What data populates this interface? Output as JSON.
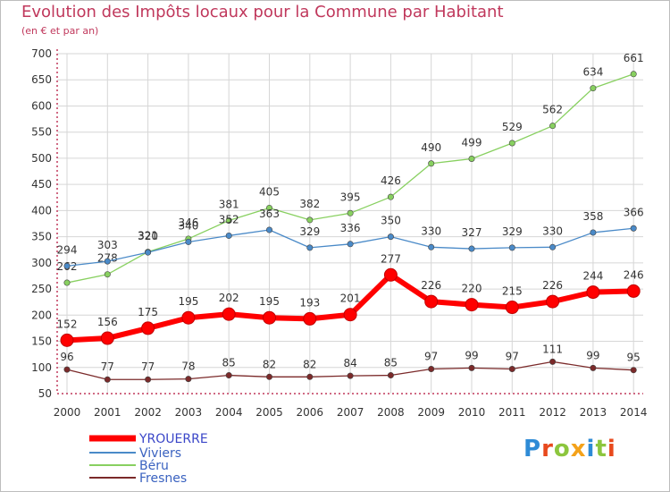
{
  "title": "Evolution des Impôts locaux pour la Commune par Habitant",
  "subtitle": "(en € et par an)",
  "logo_text": "Proxiti",
  "colors": {
    "title": "#c0385c",
    "axis": "#c0385c",
    "grid": "#d6d6d6"
  },
  "chart_data": {
    "type": "line",
    "x": [
      "2000",
      "2001",
      "2002",
      "2003",
      "2004",
      "2005",
      "2006",
      "2007",
      "2008",
      "2009",
      "2010",
      "2011",
      "2012",
      "2013",
      "2014"
    ],
    "yticks": [
      50,
      100,
      150,
      200,
      250,
      300,
      350,
      400,
      450,
      500,
      550,
      600,
      650,
      700
    ],
    "ylim": [
      50,
      700
    ],
    "grid": true,
    "legend_position": "bottom-left",
    "series": [
      {
        "name": "YROUERRE",
        "color": "#ff0000",
        "values": [
          152,
          156,
          175,
          195,
          202,
          195,
          193,
          201,
          277,
          226,
          220,
          215,
          226,
          244,
          246
        ]
      },
      {
        "name": "Viviers",
        "color": "#4a8ac8",
        "values": [
          294,
          303,
          320,
          340,
          352,
          363,
          329,
          336,
          350,
          330,
          327,
          329,
          330,
          358,
          366
        ]
      },
      {
        "name": "Béru",
        "color": "#88d060",
        "values": [
          262,
          278,
          321,
          346,
          381,
          405,
          382,
          395,
          426,
          490,
          499,
          529,
          562,
          634,
          661
        ]
      },
      {
        "name": "Fresnes",
        "color": "#7b2a2a",
        "values": [
          96,
          77,
          77,
          78,
          85,
          82,
          82,
          84,
          85,
          97,
          99,
          97,
          111,
          99,
          95
        ]
      }
    ]
  }
}
